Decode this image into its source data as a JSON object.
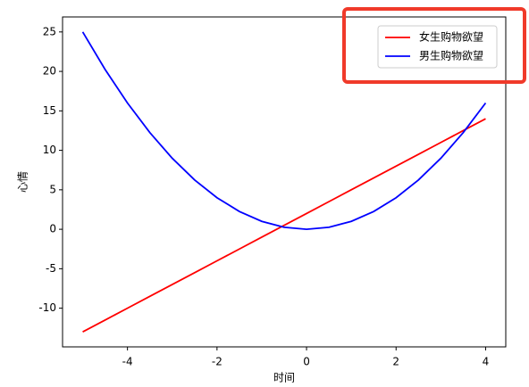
{
  "chart_data": {
    "type": "line",
    "x": [
      -5,
      -4.5,
      -4,
      -3.5,
      -3,
      -2.5,
      -2,
      -1.5,
      -1,
      -0.5,
      0,
      0.5,
      1,
      1.5,
      2,
      2.5,
      3,
      3.5,
      4
    ],
    "series": [
      {
        "name": "女生购物欲望",
        "color": "#ff0000",
        "values": [
          -13,
          -11.5,
          -10,
          -8.5,
          -7,
          -5.5,
          -4,
          -2.5,
          -1,
          0.5,
          2,
          3.5,
          5,
          6.5,
          8,
          9.5,
          11,
          12.5,
          14
        ]
      },
      {
        "name": "男生购物欲望",
        "color": "#0000ff",
        "values": [
          25,
          20.25,
          16,
          12.25,
          9,
          6.25,
          4,
          2.25,
          1,
          0.25,
          0,
          0.25,
          1,
          2.25,
          4,
          6.25,
          9,
          12.25,
          16
        ]
      }
    ],
    "x_label": "时间",
    "y_label": "心情",
    "xlim": [
      -5.45,
      4.45
    ],
    "ylim": [
      -14.9,
      26.9
    ],
    "xticks": [
      -4,
      -2,
      0,
      2,
      4
    ],
    "yticks": [
      -10,
      -5,
      0,
      5,
      10,
      15,
      20,
      25
    ],
    "legend": "upper right"
  }
}
